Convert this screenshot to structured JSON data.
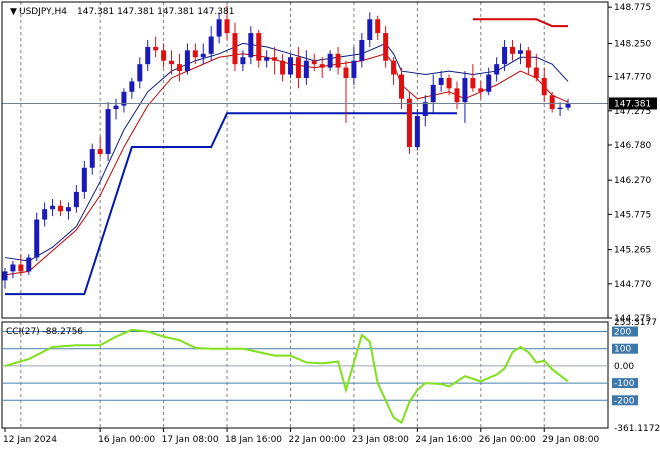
{
  "chart_data": [
    {
      "type": "candlestick",
      "title": "USDJPY,H4",
      "ohlc_text": "147.381 147.381 147.381 147.381",
      "ylim": [
        144.275,
        148.85
      ],
      "y_ticks": [
        "148.775",
        "148.250",
        "147.770",
        "147.275",
        "146.780",
        "146.270",
        "145.775",
        "145.265",
        "144.770",
        "144.275"
      ],
      "last_price": "147.381",
      "x_labels": [
        "12 Jan 2024",
        "16 Jan 00:00",
        "17 Jan 08:00",
        "18 Jan 16:00",
        "22 Jan 00:00",
        "23 Jan 08:00",
        "24 Jan 16:00",
        "26 Jan 00:00",
        "29 Jan 08:00"
      ],
      "x_label_index": [
        0,
        12,
        20,
        28,
        36,
        44,
        52,
        60,
        68
      ],
      "vgrid_index": [
        2,
        12,
        20,
        28,
        36,
        44,
        52,
        60,
        68
      ],
      "bull_color": "#1a1ab8",
      "bear_color": "#e01010",
      "candles": [
        {
          "o": 144.82,
          "h": 145.0,
          "l": 144.7,
          "c": 144.95
        },
        {
          "o": 144.95,
          "h": 145.1,
          "l": 144.85,
          "c": 145.05
        },
        {
          "o": 145.05,
          "h": 145.2,
          "l": 144.88,
          "c": 144.95
        },
        {
          "o": 144.95,
          "h": 145.2,
          "l": 144.9,
          "c": 145.15
        },
        {
          "o": 145.15,
          "h": 145.8,
          "l": 145.1,
          "c": 145.7
        },
        {
          "o": 145.7,
          "h": 145.95,
          "l": 145.6,
          "c": 145.85
        },
        {
          "o": 145.85,
          "h": 146.0,
          "l": 145.75,
          "c": 145.9
        },
        {
          "o": 145.9,
          "h": 145.98,
          "l": 145.75,
          "c": 145.82
        },
        {
          "o": 145.82,
          "h": 145.95,
          "l": 145.7,
          "c": 145.88
        },
        {
          "o": 145.88,
          "h": 146.2,
          "l": 145.8,
          "c": 146.1
        },
        {
          "o": 146.1,
          "h": 146.55,
          "l": 146.0,
          "c": 146.45
        },
        {
          "o": 146.45,
          "h": 146.8,
          "l": 146.35,
          "c": 146.72
        },
        {
          "o": 146.72,
          "h": 146.9,
          "l": 146.6,
          "c": 146.65
        },
        {
          "o": 146.65,
          "h": 147.4,
          "l": 146.55,
          "c": 147.3
        },
        {
          "o": 147.3,
          "h": 147.45,
          "l": 147.15,
          "c": 147.35
        },
        {
          "o": 147.35,
          "h": 147.6,
          "l": 147.25,
          "c": 147.55
        },
        {
          "o": 147.55,
          "h": 147.75,
          "l": 147.45,
          "c": 147.7
        },
        {
          "o": 147.7,
          "h": 148.05,
          "l": 147.6,
          "c": 147.95
        },
        {
          "o": 147.95,
          "h": 148.3,
          "l": 147.85,
          "c": 148.2
        },
        {
          "o": 148.2,
          "h": 148.35,
          "l": 148.05,
          "c": 148.15
        },
        {
          "o": 148.15,
          "h": 148.25,
          "l": 147.9,
          "c": 148.0
        },
        {
          "o": 148.0,
          "h": 148.15,
          "l": 147.8,
          "c": 147.95
        },
        {
          "o": 147.95,
          "h": 148.1,
          "l": 147.7,
          "c": 147.85
        },
        {
          "o": 147.85,
          "h": 148.25,
          "l": 147.8,
          "c": 148.15
        },
        {
          "o": 148.15,
          "h": 148.25,
          "l": 147.95,
          "c": 148.05
        },
        {
          "o": 148.05,
          "h": 148.25,
          "l": 147.95,
          "c": 148.1
        },
        {
          "o": 148.1,
          "h": 148.5,
          "l": 148.0,
          "c": 148.35
        },
        {
          "o": 148.35,
          "h": 148.7,
          "l": 148.25,
          "c": 148.6
        },
        {
          "o": 148.6,
          "h": 148.8,
          "l": 148.3,
          "c": 148.4
        },
        {
          "o": 148.4,
          "h": 148.55,
          "l": 147.85,
          "c": 147.95
        },
        {
          "o": 147.95,
          "h": 148.15,
          "l": 147.85,
          "c": 148.05
        },
        {
          "o": 148.05,
          "h": 148.5,
          "l": 147.95,
          "c": 148.4
        },
        {
          "o": 148.4,
          "h": 148.45,
          "l": 147.9,
          "c": 148.0
        },
        {
          "o": 148.0,
          "h": 148.15,
          "l": 147.9,
          "c": 148.05
        },
        {
          "o": 148.05,
          "h": 148.2,
          "l": 147.8,
          "c": 148.0
        },
        {
          "o": 148.0,
          "h": 148.1,
          "l": 147.7,
          "c": 147.8
        },
        {
          "o": 147.8,
          "h": 148.1,
          "l": 147.75,
          "c": 148.05
        },
        {
          "o": 148.05,
          "h": 148.2,
          "l": 147.6,
          "c": 147.75
        },
        {
          "o": 147.75,
          "h": 148.15,
          "l": 147.65,
          "c": 148.0
        },
        {
          "o": 148.0,
          "h": 148.1,
          "l": 147.85,
          "c": 147.95
        },
        {
          "o": 147.95,
          "h": 148.05,
          "l": 147.75,
          "c": 147.9
        },
        {
          "o": 147.9,
          "h": 148.15,
          "l": 147.85,
          "c": 148.1
        },
        {
          "o": 148.1,
          "h": 148.2,
          "l": 147.8,
          "c": 147.9
        },
        {
          "o": 147.9,
          "h": 148.0,
          "l": 147.1,
          "c": 147.75
        },
        {
          "o": 147.75,
          "h": 148.2,
          "l": 147.65,
          "c": 148.0
        },
        {
          "o": 148.0,
          "h": 148.4,
          "l": 147.9,
          "c": 148.3
        },
        {
          "o": 148.3,
          "h": 148.7,
          "l": 148.2,
          "c": 148.6
        },
        {
          "o": 148.6,
          "h": 148.65,
          "l": 148.3,
          "c": 148.4
        },
        {
          "o": 148.4,
          "h": 148.5,
          "l": 147.9,
          "c": 148.0
        },
        {
          "o": 148.0,
          "h": 148.05,
          "l": 147.65,
          "c": 147.8
        },
        {
          "o": 147.8,
          "h": 147.9,
          "l": 147.3,
          "c": 147.45
        },
        {
          "o": 147.45,
          "h": 147.55,
          "l": 146.65,
          "c": 146.75
        },
        {
          "o": 146.75,
          "h": 147.3,
          "l": 146.7,
          "c": 147.2
        },
        {
          "o": 147.2,
          "h": 147.5,
          "l": 147.05,
          "c": 147.4
        },
        {
          "o": 147.4,
          "h": 147.8,
          "l": 147.25,
          "c": 147.65
        },
        {
          "o": 147.65,
          "h": 147.85,
          "l": 147.55,
          "c": 147.75
        },
        {
          "o": 147.75,
          "h": 147.8,
          "l": 147.5,
          "c": 147.6
        },
        {
          "o": 147.6,
          "h": 147.7,
          "l": 147.3,
          "c": 147.4
        },
        {
          "o": 147.4,
          "h": 147.85,
          "l": 147.1,
          "c": 147.75
        },
        {
          "o": 147.75,
          "h": 147.95,
          "l": 147.55,
          "c": 147.6
        },
        {
          "o": 147.6,
          "h": 147.7,
          "l": 147.45,
          "c": 147.55
        },
        {
          "o": 147.55,
          "h": 147.9,
          "l": 147.5,
          "c": 147.8
        },
        {
          "o": 147.8,
          "h": 148.05,
          "l": 147.7,
          "c": 147.95
        },
        {
          "o": 147.95,
          "h": 148.3,
          "l": 147.85,
          "c": 148.2
        },
        {
          "o": 148.2,
          "h": 148.3,
          "l": 148.0,
          "c": 148.1
        },
        {
          "o": 148.1,
          "h": 148.25,
          "l": 147.95,
          "c": 148.15
        },
        {
          "o": 148.15,
          "h": 148.2,
          "l": 147.8,
          "c": 147.9
        },
        {
          "o": 147.9,
          "h": 148.1,
          "l": 147.7,
          "c": 147.75
        },
        {
          "o": 147.75,
          "h": 147.9,
          "l": 147.4,
          "c": 147.5
        },
        {
          "o": 147.5,
          "h": 147.55,
          "l": 147.25,
          "c": 147.3
        },
        {
          "o": 147.3,
          "h": 147.4,
          "l": 147.2,
          "c": 147.32
        },
        {
          "o": 147.32,
          "h": 147.45,
          "l": 147.28,
          "c": 147.381
        }
      ],
      "overlays": [
        {
          "id": "upper-band",
          "color": "#d40000",
          "points": [
            [
              59,
              148.6
            ],
            [
              67,
              148.6
            ],
            [
              69,
              148.5
            ],
            [
              71,
              148.5
            ]
          ]
        },
        {
          "id": "lower-band",
          "color": "#0018b0",
          "points": [
            [
              0,
              144.62
            ],
            [
              10,
              144.62
            ],
            [
              15,
              146.4
            ],
            [
              16,
              146.75
            ],
            [
              26,
              146.75
            ],
            [
              28,
              147.24
            ],
            [
              57,
              147.24
            ]
          ]
        },
        {
          "id": "slow-average",
          "color": "#0b1a80",
          "points": [
            [
              0,
              145.15
            ],
            [
              3,
              145.1
            ],
            [
              6,
              145.3
            ],
            [
              9,
              145.6
            ],
            [
              12,
              146.25
            ],
            [
              15,
              147.0
            ],
            [
              18,
              147.55
            ],
            [
              21,
              147.85
            ],
            [
              24,
              148.0
            ],
            [
              27,
              148.1
            ],
            [
              30,
              148.25
            ],
            [
              33,
              148.2
            ],
            [
              36,
              148.1
            ],
            [
              39,
              148.0
            ],
            [
              42,
              148.05
            ],
            [
              45,
              148.1
            ],
            [
              48,
              148.25
            ],
            [
              49,
              148.1
            ],
            [
              50,
              147.85
            ],
            [
              53,
              147.8
            ],
            [
              56,
              147.85
            ],
            [
              59,
              147.8
            ],
            [
              62,
              147.85
            ],
            [
              65,
              148.05
            ],
            [
              67,
              148.05
            ],
            [
              69,
              147.95
            ],
            [
              71,
              147.7
            ]
          ]
        },
        {
          "id": "fast-average",
          "color": "#c00000",
          "points": [
            [
              0,
              144.9
            ],
            [
              3,
              144.95
            ],
            [
              6,
              145.25
            ],
            [
              9,
              145.55
            ],
            [
              12,
              146.05
            ],
            [
              15,
              146.75
            ],
            [
              18,
              147.35
            ],
            [
              21,
              147.75
            ],
            [
              24,
              147.9
            ],
            [
              27,
              148.05
            ],
            [
              30,
              148.1
            ],
            [
              33,
              148.05
            ],
            [
              36,
              147.95
            ],
            [
              39,
              147.9
            ],
            [
              42,
              147.95
            ],
            [
              45,
              148.0
            ],
            [
              48,
              148.1
            ],
            [
              49,
              147.95
            ],
            [
              50,
              147.65
            ],
            [
              52,
              147.45
            ],
            [
              54,
              147.5
            ],
            [
              56,
              147.55
            ],
            [
              58,
              147.45
            ],
            [
              60,
              147.55
            ],
            [
              62,
              147.65
            ],
            [
              65,
              147.85
            ],
            [
              67,
              147.75
            ],
            [
              69,
              147.5
            ],
            [
              71,
              147.4
            ]
          ]
        }
      ]
    },
    {
      "type": "line",
      "title": "CCI(27) -88.2756",
      "ylim": [
        -361.1172,
        255.3177
      ],
      "y_ticks": [
        "255.3177",
        "200",
        "100",
        "0.00",
        "-100",
        "-200",
        "-361.1172"
      ],
      "levels": [
        200,
        100,
        0,
        -100,
        -200
      ],
      "level_labels": [
        "200",
        "100",
        "-100",
        "-200"
      ],
      "line_color": "#7ee11a",
      "x": [
        0,
        3,
        6,
        9,
        12,
        14,
        16,
        18,
        20,
        22,
        24,
        26,
        28,
        30,
        32,
        34,
        36,
        38,
        40,
        42,
        43,
        45,
        46,
        47,
        49,
        50,
        51,
        52,
        53,
        55,
        56,
        58,
        60,
        62,
        63,
        64,
        65,
        66,
        67,
        68,
        69,
        71
      ],
      "values": [
        0,
        40,
        110,
        120,
        120,
        170,
        210,
        200,
        170,
        150,
        105,
        100,
        100,
        100,
        80,
        60,
        60,
        20,
        15,
        25,
        -140,
        180,
        140,
        -100,
        -300,
        -330,
        -210,
        -140,
        -100,
        -105,
        -120,
        -60,
        -90,
        -50,
        -15,
        80,
        110,
        80,
        20,
        30,
        -20,
        -90
      ]
    }
  ]
}
